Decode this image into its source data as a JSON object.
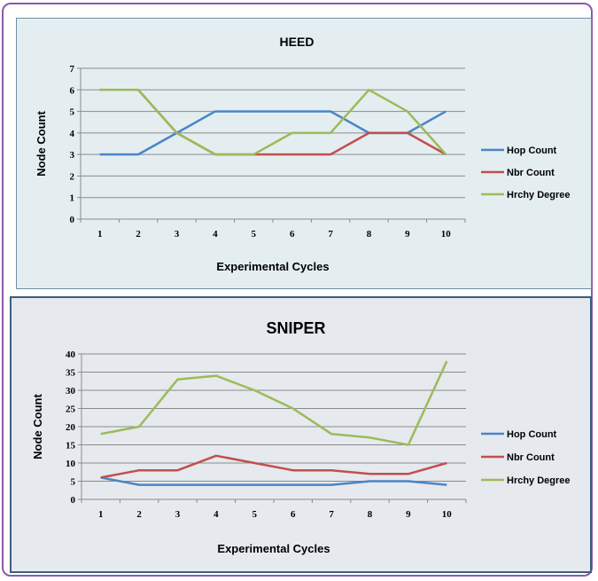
{
  "chart_data": [
    {
      "type": "line",
      "title": "HEED",
      "xlabel": "Experimental Cycles",
      "ylabel": "Node Count",
      "categories": [
        "1",
        "2",
        "3",
        "4",
        "5",
        "6",
        "7",
        "8",
        "9",
        "10"
      ],
      "ylim": [
        0,
        7
      ],
      "yticks": [
        0,
        1,
        2,
        3,
        4,
        5,
        6,
        7
      ],
      "grid": true,
      "legend": "right",
      "series": [
        {
          "name": "Hop Count",
          "color": "#4a86c5",
          "values": [
            3,
            3,
            4,
            5,
            5,
            5,
            5,
            4,
            4,
            5
          ]
        },
        {
          "name": "Nbr Count",
          "color": "#c0504d",
          "values": [
            6,
            6,
            4,
            3,
            3,
            3,
            3,
            4,
            4,
            3
          ]
        },
        {
          "name": "Hrchy Degree",
          "color": "#9bbb59",
          "values": [
            6,
            6,
            4,
            3,
            3,
            4,
            4,
            6,
            5,
            3
          ]
        }
      ]
    },
    {
      "type": "line",
      "title": "SNIPER",
      "xlabel": "Experimental Cycles",
      "ylabel": "Node Count",
      "categories": [
        "1",
        "2",
        "3",
        "4",
        "5",
        "6",
        "7",
        "8",
        "9",
        "10"
      ],
      "ylim": [
        0,
        40
      ],
      "yticks": [
        0,
        5,
        10,
        15,
        20,
        25,
        30,
        35,
        40
      ],
      "grid": true,
      "legend": "right",
      "series": [
        {
          "name": "Hop Count",
          "color": "#4a86c5",
          "values": [
            6,
            4,
            4,
            4,
            4,
            4,
            4,
            5,
            5,
            4
          ]
        },
        {
          "name": "Nbr Count",
          "color": "#c0504d",
          "values": [
            6,
            8,
            8,
            12,
            10,
            8,
            8,
            7,
            7,
            10
          ]
        },
        {
          "name": "Hrchy Degree",
          "color": "#9bbb59",
          "values": [
            18,
            20,
            33,
            34,
            30,
            25,
            18,
            17,
            15,
            38
          ]
        }
      ]
    }
  ]
}
